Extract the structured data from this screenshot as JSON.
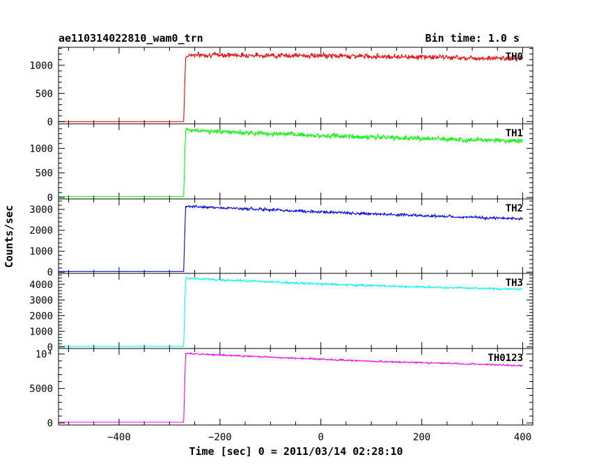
{
  "chart_data": {
    "type": "line",
    "title": "ae110314022810_wam0_trn",
    "subtitle": "Bin time: 1.0 s",
    "xlabel": "Time [sec] 0 = 2011/03/14 02:28:10",
    "ylabel": "Counts/sec",
    "xlim": [
      -520,
      420
    ],
    "x_ticks": [
      -400,
      -200,
      0,
      200,
      400
    ],
    "x_tick_labels": [
      "−400",
      "−200",
      "0",
      "200",
      "400"
    ],
    "grid": false,
    "panels": [
      {
        "name": "TH0",
        "color": "#ff0000",
        "ylim": [
          -40,
          1320
        ],
        "y_ticks": [
          0,
          500,
          1000
        ],
        "y_tick_labels": [
          "0",
          "500",
          "1000"
        ],
        "minor_step": 100,
        "x": [
          -520,
          -272,
          -268,
          -260,
          -200,
          -100,
          0,
          100,
          200,
          300,
          400
        ],
        "y": [
          0,
          0,
          1150,
          1185,
          1185,
          1175,
          1170,
          1160,
          1150,
          1130,
          1120
        ],
        "noise": 45
      },
      {
        "name": "TH1",
        "color": "#00ff00",
        "ylim": [
          -30,
          1500
        ],
        "y_ticks": [
          0,
          500,
          1000
        ],
        "y_tick_labels": [
          "0",
          "500",
          "1000"
        ],
        "minor_step": 100,
        "x": [
          -520,
          -272,
          -268,
          -260,
          -200,
          -100,
          0,
          100,
          200,
          300,
          400
        ],
        "y": [
          20,
          20,
          1380,
          1370,
          1340,
          1300,
          1260,
          1230,
          1200,
          1175,
          1150
        ],
        "noise": 50
      },
      {
        "name": "TH2",
        "color": "#0000ff",
        "ylim": [
          -60,
          3500
        ],
        "y_ticks": [
          0,
          1000,
          2000,
          3000
        ],
        "y_tick_labels": [
          "0",
          "1000",
          "2000",
          "3000"
        ],
        "minor_step": 200,
        "x": [
          -520,
          -272,
          -268,
          -260,
          -200,
          -100,
          0,
          100,
          200,
          300,
          400
        ],
        "y": [
          30,
          30,
          3150,
          3150,
          3080,
          2980,
          2880,
          2790,
          2700,
          2620,
          2550
        ],
        "noise": 70
      },
      {
        "name": "TH3",
        "color": "#00ffff",
        "ylim": [
          -100,
          4700
        ],
        "y_ticks": [
          0,
          1000,
          2000,
          3000,
          4000
        ],
        "y_tick_labels": [
          "0",
          "1000",
          "2000",
          "3000",
          "4000"
        ],
        "minor_step": 200,
        "x": [
          -520,
          -272,
          -268,
          -260,
          -200,
          -100,
          0,
          100,
          200,
          300,
          400
        ],
        "y": [
          40,
          40,
          4400,
          4400,
          4280,
          4150,
          4020,
          3920,
          3830,
          3750,
          3680
        ],
        "noise": 70
      },
      {
        "name": "TH0123",
        "color": "#ff00ff",
        "ylim": [
          -300,
          10800
        ],
        "y_ticks": [
          0,
          5000,
          10000
        ],
        "y_tick_labels": [
          "0",
          "5000",
          "10⁴"
        ],
        "minor_step": 1000,
        "x": [
          -520,
          -272,
          -268,
          -260,
          -200,
          -100,
          0,
          100,
          200,
          300,
          400
        ],
        "y": [
          100,
          100,
          10100,
          10050,
          9850,
          9550,
          9250,
          8950,
          8750,
          8550,
          8300
        ],
        "noise": 120
      }
    ]
  }
}
